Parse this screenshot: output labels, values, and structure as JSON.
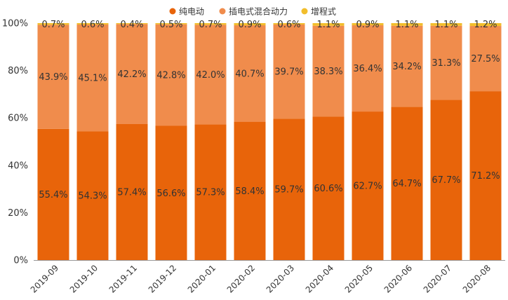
{
  "chart_data": {
    "type": "bar",
    "stacked": true,
    "normalized": true,
    "title": "",
    "xlabel": "",
    "ylabel": "",
    "ylim": [
      0,
      100
    ],
    "y_ticks": [
      "0%",
      "20%",
      "40%",
      "60%",
      "80%",
      "100%"
    ],
    "grid": false,
    "legend_position": "top",
    "categories": [
      "2019-09",
      "2019-10",
      "2019-11",
      "2019-12",
      "2020-01",
      "2020-02",
      "2020-03",
      "2020-04",
      "2020-05",
      "2020-06",
      "2020-07",
      "2020-08"
    ],
    "series": [
      {
        "name": "纯电动",
        "color": "#E8640A",
        "values": [
          55.4,
          54.3,
          57.4,
          56.6,
          57.3,
          58.4,
          59.7,
          60.6,
          62.7,
          64.7,
          67.7,
          71.2
        ],
        "labels": [
          "55.4%",
          "54.3%",
          "57.4%",
          "56.6%",
          "57.3%",
          "58.4%",
          "59.7%",
          "60.6%",
          "62.7%",
          "64.7%",
          "67.7%",
          "71.2%"
        ]
      },
      {
        "name": "插电式混合动力",
        "color": "#F08C4C",
        "values": [
          43.9,
          45.1,
          42.2,
          42.8,
          42.0,
          40.7,
          39.7,
          38.3,
          36.4,
          34.2,
          31.3,
          27.5
        ],
        "labels": [
          "43.9%",
          "45.1%",
          "42.2%",
          "42.8%",
          "42.0%",
          "40.7%",
          "39.7%",
          "38.3%",
          "36.4%",
          "34.2%",
          "31.3%",
          "27.5%"
        ]
      },
      {
        "name": "增程式",
        "color": "#F2BE2C",
        "values": [
          0.7,
          0.6,
          0.4,
          0.5,
          0.7,
          0.9,
          0.6,
          1.1,
          0.9,
          1.1,
          1.1,
          1.2
        ],
        "labels": [
          "0.7%",
          "0.6%",
          "0.4%",
          "0.5%",
          "0.7%",
          "0.9%",
          "0.6%",
          "1.1%",
          "0.9%",
          "1.1%",
          "1.1%",
          "1.2%"
        ]
      }
    ]
  }
}
